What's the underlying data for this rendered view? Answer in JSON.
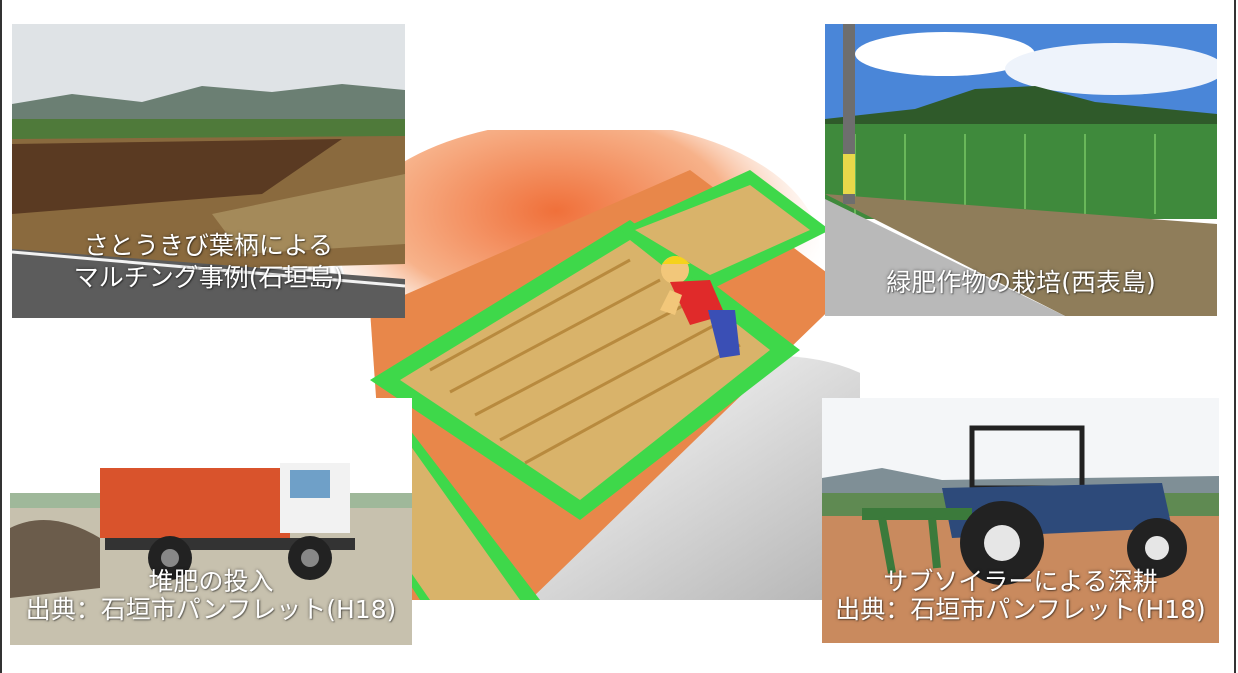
{
  "photos": {
    "mulching": {
      "caption_line1": "さとうきび葉柄による",
      "caption_line2": "マルチング事例(石垣島)"
    },
    "green_manure": {
      "caption_line1": "緑肥作物の栽培(西表島)"
    },
    "compost": {
      "caption_line1": "堆肥の投入",
      "caption_line2": "出典：石垣市パンフレット(H18)"
    },
    "subsoiler": {
      "caption_line1": "サブソイラーによる深耕",
      "caption_line2": "出典：石垣市パンフレット(H18)"
    }
  },
  "colors": {
    "grass_green": "#3ed84a",
    "straw": "#d9b36a",
    "soil_orange": "#e8874a",
    "sky_blue": "#4a86d8"
  }
}
